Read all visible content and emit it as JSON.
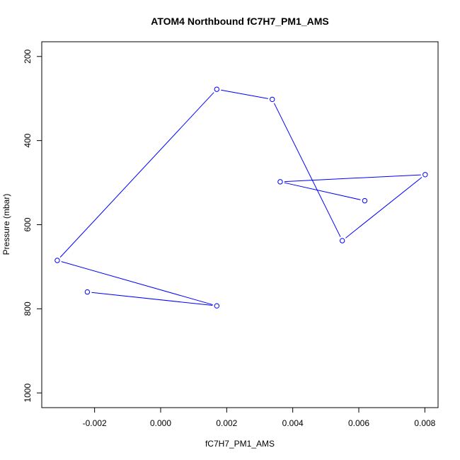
{
  "chart_data": {
    "type": "line",
    "title": "ATOM4 Northbound fC7H7_PM1_AMS",
    "xlabel": "fC7H7_PM1_AMS",
    "ylabel": "Pressure (mbar)",
    "xlim": [
      -0.0036,
      0.0084
    ],
    "ylim": [
      1035,
      165
    ],
    "y_reversed": true,
    "x_ticks": [
      -0.002,
      0.0,
      0.002,
      0.004,
      0.006,
      0.008
    ],
    "x_tick_labels": [
      "-0.002",
      "0.000",
      "0.002",
      "0.004",
      "0.006",
      "0.008"
    ],
    "y_ticks": [
      200,
      400,
      600,
      800,
      1000
    ],
    "y_tick_labels": [
      "200",
      "400",
      "600",
      "800",
      "1000"
    ],
    "grid": false,
    "series": [
      {
        "color": "#0000ff",
        "marker": "open-circle",
        "x": [
          -0.00222,
          0.0017,
          -0.00313,
          0.0017,
          0.00338,
          0.0055,
          0.00801,
          0.00362,
          0.00618
        ],
        "y": [
          760,
          793,
          685,
          278,
          302,
          638,
          481,
          498,
          543
        ]
      }
    ]
  }
}
